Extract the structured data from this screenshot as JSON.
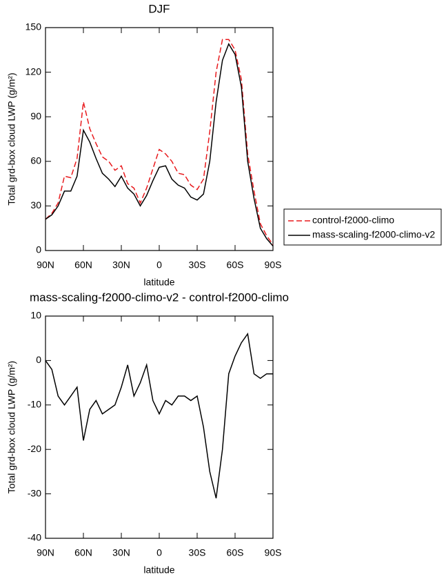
{
  "chart_data": [
    {
      "type": "line",
      "title": "DJF",
      "xlabel": "latitude",
      "ylabel": "Total grd-box cloud LWP (g/m²)",
      "x": [
        90,
        85,
        80,
        75,
        70,
        65,
        60,
        55,
        50,
        45,
        40,
        35,
        30,
        25,
        20,
        15,
        10,
        5,
        0,
        -5,
        -10,
        -15,
        -20,
        -25,
        -30,
        -35,
        -40,
        -45,
        -50,
        -55,
        -60,
        -65,
        -70,
        -75,
        -80,
        -85,
        -90
      ],
      "xlim": [
        90,
        -90
      ],
      "xticks": [
        {
          "value": 90,
          "label": "90N"
        },
        {
          "value": 60,
          "label": "60N"
        },
        {
          "value": 30,
          "label": "30N"
        },
        0,
        {
          "value": -30,
          "label": "30S"
        },
        {
          "value": -60,
          "label": "60S"
        },
        {
          "value": -90,
          "label": "90S"
        }
      ],
      "ylim": [
        0,
        150
      ],
      "yticks": [
        0,
        30,
        60,
        90,
        120,
        150
      ],
      "legend": "right",
      "series": [
        {
          "name": "control-f2000-climo",
          "color": "#e8191c",
          "linestyle": "dashed",
          "values": [
            21,
            25,
            32,
            50,
            49,
            62,
            100,
            82,
            72,
            63,
            60,
            54,
            57,
            45,
            42,
            32,
            42,
            55,
            68,
            65,
            60,
            52,
            51,
            44,
            41,
            48,
            80,
            120,
            142,
            142,
            135,
            115,
            65,
            40,
            18,
            10,
            4
          ]
        },
        {
          "name": "mass-scaling-f2000-climo-v2",
          "color": "#000000",
          "linestyle": "solid",
          "values": [
            21,
            24,
            30,
            40,
            40,
            50,
            81,
            73,
            62,
            52,
            48,
            43,
            50,
            42,
            38,
            30,
            37,
            47,
            56,
            57,
            48,
            44,
            42,
            36,
            34,
            38,
            60,
            100,
            128,
            139,
            132,
            110,
            60,
            35,
            15,
            8,
            3
          ]
        }
      ]
    },
    {
      "type": "line",
      "title": "mass-scaling-f2000-climo-v2 - control-f2000-climo",
      "xlabel": "latitude",
      "ylabel": "Total grd-box cloud LWP (g/m²)",
      "x": [
        90,
        85,
        80,
        75,
        70,
        65,
        60,
        55,
        50,
        45,
        40,
        35,
        30,
        25,
        20,
        15,
        10,
        5,
        0,
        -5,
        -10,
        -15,
        -20,
        -25,
        -30,
        -35,
        -40,
        -45,
        -50,
        -55,
        -60,
        -65,
        -70,
        -75,
        -80,
        -85,
        -90
      ],
      "xlim": [
        90,
        -90
      ],
      "xticks": [
        {
          "value": 90,
          "label": "90N"
        },
        {
          "value": 60,
          "label": "60N"
        },
        {
          "value": 30,
          "label": "30N"
        },
        0,
        {
          "value": -30,
          "label": "30S"
        },
        {
          "value": -60,
          "label": "60S"
        },
        {
          "value": -90,
          "label": "90S"
        }
      ],
      "ylim": [
        -40,
        10
      ],
      "yticks": [
        10,
        0,
        -10,
        -20,
        -30,
        -40
      ],
      "series": [
        {
          "color": "#000000",
          "linestyle": "solid",
          "values": [
            0,
            -2,
            -8,
            -10,
            -8,
            -6,
            -18,
            -11,
            -9,
            -12,
            -11,
            -10,
            -6,
            -1,
            -8,
            -5,
            -1,
            -9,
            -12,
            -9,
            -10,
            -8,
            -8,
            -9,
            -8,
            -15,
            -25,
            -31,
            -20,
            -3,
            1,
            4,
            6,
            -3,
            -4,
            -3,
            -3
          ]
        }
      ]
    }
  ]
}
